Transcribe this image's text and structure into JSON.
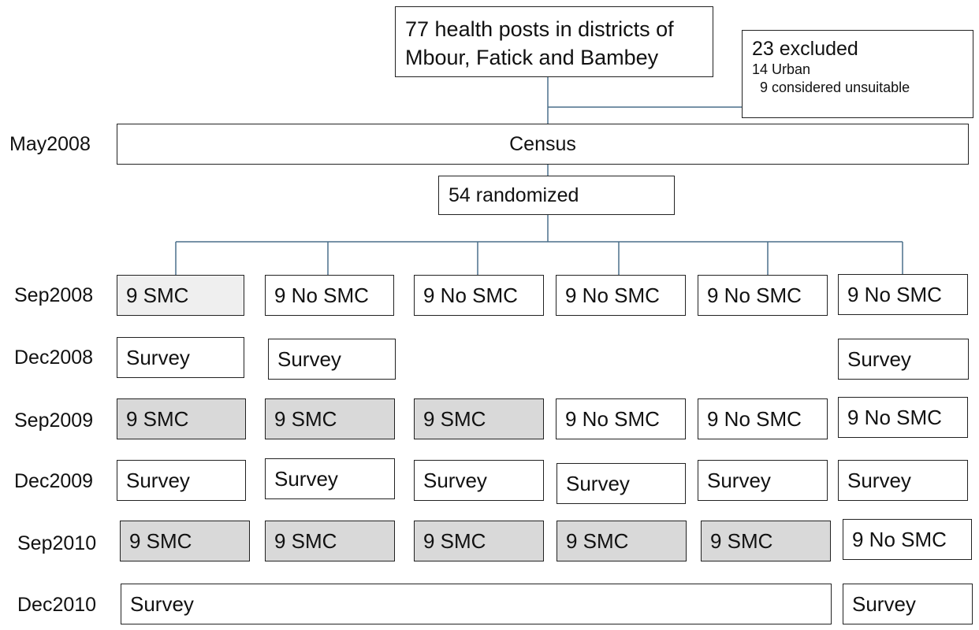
{
  "top": {
    "line1": "77 health posts in districts of",
    "line2": "Mbour, Fatick and Bambey"
  },
  "excluded": {
    "title": "23 excluded",
    "urban": "14 Urban",
    "unsuitable": "9 considered unsuitable"
  },
  "census": {
    "date": "May2008",
    "label": "Census"
  },
  "randomized": {
    "label": "54 randomized"
  },
  "rows": {
    "sep2008": {
      "date": "Sep2008",
      "cells": [
        "9 SMC",
        "9 No SMC",
        "9 No SMC",
        "9 No SMC",
        "9 No SMC",
        "9 No SMC"
      ]
    },
    "dec2008": {
      "date": "Dec2008",
      "cells": [
        "Survey",
        "Survey",
        "Survey"
      ]
    },
    "sep2009": {
      "date": "Sep2009",
      "cells": [
        "9 SMC",
        "9 SMC",
        "9 SMC",
        "9 No SMC",
        "9 No SMC",
        "9 No SMC"
      ]
    },
    "dec2009": {
      "date": "Dec2009",
      "cells": [
        "Survey",
        "Survey",
        "Survey",
        "Survey",
        "Survey",
        "Survey"
      ]
    },
    "sep2010": {
      "date": "Sep2010",
      "cells": [
        "9 SMC",
        "9 SMC",
        "9 SMC",
        "9 SMC",
        "9 SMC",
        "9 No SMC"
      ]
    },
    "dec2010": {
      "date": "Dec2010",
      "cells": [
        "Survey",
        "Survey"
      ]
    }
  },
  "colors": {
    "smc_fill": "#d9d9d9",
    "smc_light_fill": "#efefef",
    "connector": "#4a6f8a",
    "border": "#222222"
  }
}
